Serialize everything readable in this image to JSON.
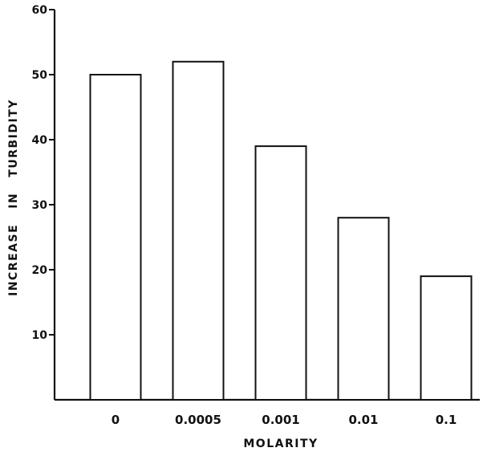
{
  "chart_data": {
    "type": "bar",
    "title": "",
    "xlabel": "MOLARITY",
    "ylabel": "INCREASE   IN   TURBIDITY",
    "categories": [
      "0",
      "0.0005",
      "0.001",
      "0.01",
      "0.1"
    ],
    "values": [
      50,
      52,
      39,
      28,
      19
    ],
    "yticks": [
      10,
      20,
      30,
      40,
      50,
      60
    ],
    "ylim": [
      0,
      60
    ],
    "grid": false,
    "legend": "none",
    "colors": {
      "bar_fill": "#ffffff",
      "bar_stroke": "#111111",
      "axis": "#111111"
    }
  }
}
